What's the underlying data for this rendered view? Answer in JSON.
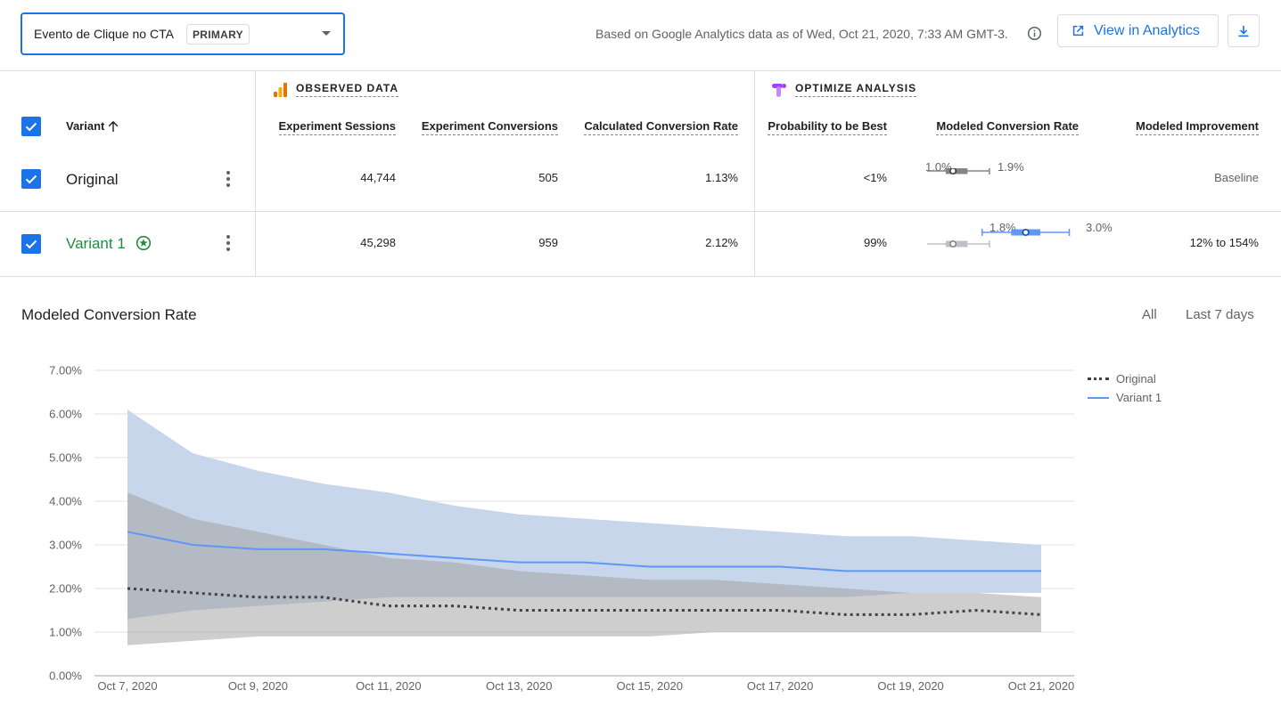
{
  "header": {
    "objective_name": "Evento de Clique no CTA",
    "objective_badge": "PRIMARY",
    "based_on": "Based on Google Analytics data as of Wed, Oct 21, 2020, 7:33 AM GMT-3.",
    "view_analytics_label": "View in Analytics"
  },
  "table": {
    "variant_header": "Variant",
    "observed_section": "OBSERVED DATA",
    "optimize_section": "OPTIMIZE ANALYSIS",
    "columns": {
      "sessions": "Experiment Sessions",
      "conversions": "Experiment Conversions",
      "rate": "Calculated Conversion Rate",
      "prob_best": "Probability to be Best",
      "modeled_rate": "Modeled Conversion Rate",
      "improvement": "Modeled Improvement"
    },
    "rows": [
      {
        "name": "Original",
        "sessions": "44,744",
        "conversions": "505",
        "rate": "1.13%",
        "prob_best": "<1%",
        "ci_low_label": "1.0%",
        "ci_high_label": "1.9%",
        "improvement": "Baseline"
      },
      {
        "name": "Variant 1",
        "sessions": "45,298",
        "conversions": "959",
        "rate": "2.12%",
        "prob_best": "99%",
        "ci_low_label": "1.8%",
        "ci_high_label": "3.0%",
        "improvement": "12% to 154%"
      }
    ]
  },
  "chart_section": {
    "title": "Modeled Conversion Rate",
    "range_all": "All",
    "range_last7": "Last 7 days"
  },
  "colors": {
    "accent": "#1a73e8",
    "winner_green": "#1e8e3e",
    "variant_line": "#5e97f6",
    "variant_band": "#c5d4ea",
    "original_band": "#9e9e9e",
    "original_line": "#424242"
  },
  "chart_data": {
    "type": "area",
    "title": "",
    "xlabel": "",
    "ylabel": "",
    "ylim": [
      0,
      7
    ],
    "y_unit": "%",
    "yticks": [
      "0.00%",
      "1.00%",
      "2.00%",
      "3.00%",
      "4.00%",
      "5.00%",
      "6.00%",
      "7.00%"
    ],
    "x": [
      "Oct 7, 2020",
      "Oct 8, 2020",
      "Oct 9, 2020",
      "Oct 10, 2020",
      "Oct 11, 2020",
      "Oct 12, 2020",
      "Oct 13, 2020",
      "Oct 14, 2020",
      "Oct 15, 2020",
      "Oct 16, 2020",
      "Oct 17, 2020",
      "Oct 18, 2020",
      "Oct 19, 2020",
      "Oct 20, 2020",
      "Oct 21, 2020"
    ],
    "xtick_labels": [
      "Oct 7, 2020",
      "Oct 9, 2020",
      "Oct 11, 2020",
      "Oct 13, 2020",
      "Oct 15, 2020",
      "Oct 17, 2020",
      "Oct 19, 2020",
      "Oct 21, 2020"
    ],
    "grid": true,
    "legend_position": "right",
    "series": [
      {
        "name": "Original",
        "style": "dotted",
        "values": [
          2.0,
          1.9,
          1.8,
          1.8,
          1.6,
          1.6,
          1.5,
          1.5,
          1.5,
          1.5,
          1.5,
          1.4,
          1.4,
          1.5,
          1.4
        ],
        "lower": [
          0.7,
          0.8,
          0.9,
          0.9,
          0.9,
          0.9,
          0.9,
          0.9,
          0.9,
          1.0,
          1.0,
          1.0,
          1.0,
          1.0,
          1.0
        ],
        "upper": [
          4.2,
          3.6,
          3.3,
          3.0,
          2.7,
          2.6,
          2.4,
          2.3,
          2.2,
          2.2,
          2.1,
          2.0,
          1.9,
          1.9,
          1.8
        ]
      },
      {
        "name": "Variant 1",
        "style": "solid",
        "values": [
          3.3,
          3.0,
          2.9,
          2.9,
          2.8,
          2.7,
          2.6,
          2.6,
          2.5,
          2.5,
          2.5,
          2.4,
          2.4,
          2.4,
          2.4
        ],
        "lower": [
          1.3,
          1.5,
          1.6,
          1.7,
          1.8,
          1.8,
          1.8,
          1.8,
          1.8,
          1.8,
          1.8,
          1.8,
          1.9,
          1.9,
          1.9
        ],
        "upper": [
          6.1,
          5.1,
          4.7,
          4.4,
          4.2,
          3.9,
          3.7,
          3.6,
          3.5,
          3.4,
          3.3,
          3.2,
          3.2,
          3.1,
          3.0
        ]
      }
    ]
  },
  "interval_data": {
    "axis_range": [
      0.7,
      3.3
    ],
    "rows": [
      {
        "name": "Original",
        "low": 1.0,
        "q1": 1.3,
        "median": 1.4,
        "q3": 1.6,
        "high": 1.9
      },
      {
        "name": "Variant 1",
        "low": 1.8,
        "q1": 2.2,
        "median": 2.4,
        "q3": 2.6,
        "high": 3.0
      }
    ]
  }
}
